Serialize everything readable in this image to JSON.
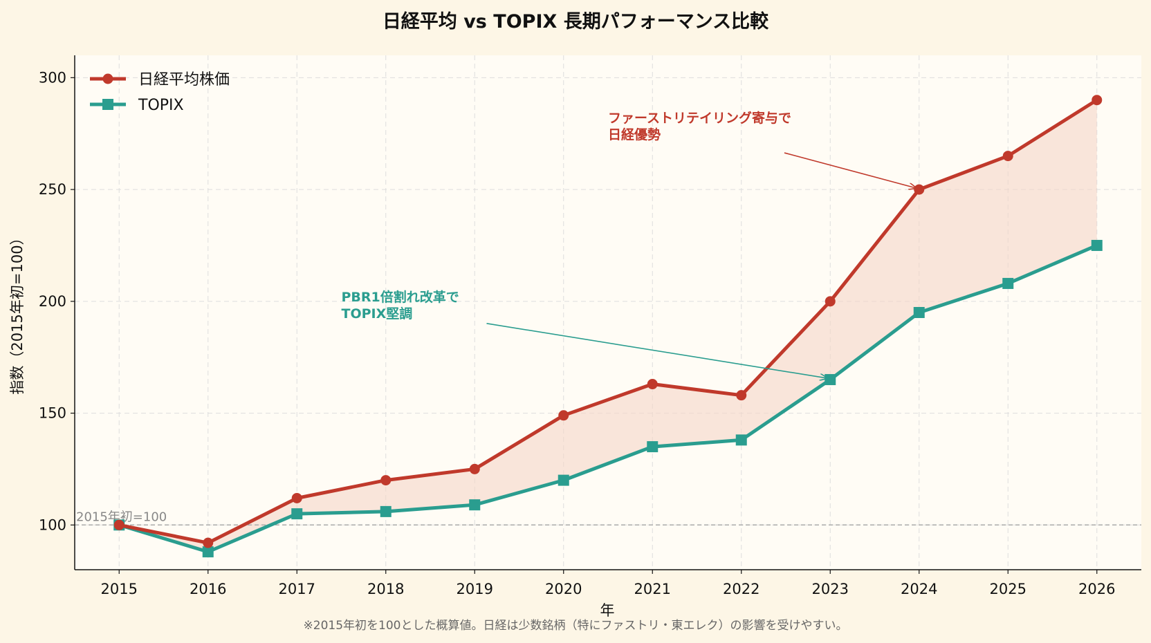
{
  "chart_data": {
    "type": "line",
    "title": "日経平均 vs TOPIX  長期パフォーマンス比較",
    "xlabel": "年",
    "ylabel": "指数（2015年初=100）",
    "x": [
      2015,
      2016,
      2017,
      2018,
      2019,
      2020,
      2021,
      2022,
      2023,
      2024,
      2025,
      2026
    ],
    "xlim": [
      2014.5,
      2026.5
    ],
    "ylim": [
      80,
      310
    ],
    "yticks": [
      100,
      150,
      200,
      250,
      300
    ],
    "grid": true,
    "legend_placement": "top-left",
    "series": [
      {
        "name": "日経平均株価",
        "color": "#c0392b",
        "marker": "circle",
        "values": [
          100,
          92,
          112,
          120,
          125,
          149,
          163,
          158,
          200,
          250,
          265,
          290
        ]
      },
      {
        "name": "TOPIX",
        "color": "#2a9d8f",
        "marker": "square",
        "values": [
          100,
          88,
          105,
          106,
          109,
          120,
          135,
          138,
          165,
          195,
          208,
          225
        ]
      }
    ],
    "fill_between_color": "#f5d5c8",
    "baseline": {
      "value": 100,
      "label": "2015年初=100",
      "color": "#aaaaaa"
    },
    "annotations": [
      {
        "lines": [
          "ファーストリテイリング寄与で",
          "日経優勢"
        ],
        "color": "#c0392b",
        "target": {
          "x": 2024,
          "y": 250
        },
        "text_at": {
          "x": 2020.5,
          "y": 280
        }
      },
      {
        "lines": [
          "PBR1倍割れ改革で",
          "TOPIX堅調"
        ],
        "color": "#2a9d8f",
        "target": {
          "x": 2023,
          "y": 165
        },
        "text_at": {
          "x": 2017.5,
          "y": 200
        }
      }
    ],
    "footnote": "※2015年初を100とした概算値。日経は少数銘柄（特にファストリ・東エレク）の影響を受けやすい。",
    "colors": {
      "background": "#fdf6e6",
      "plot_background": "#fffcf5",
      "grid": "#dddddd"
    }
  }
}
